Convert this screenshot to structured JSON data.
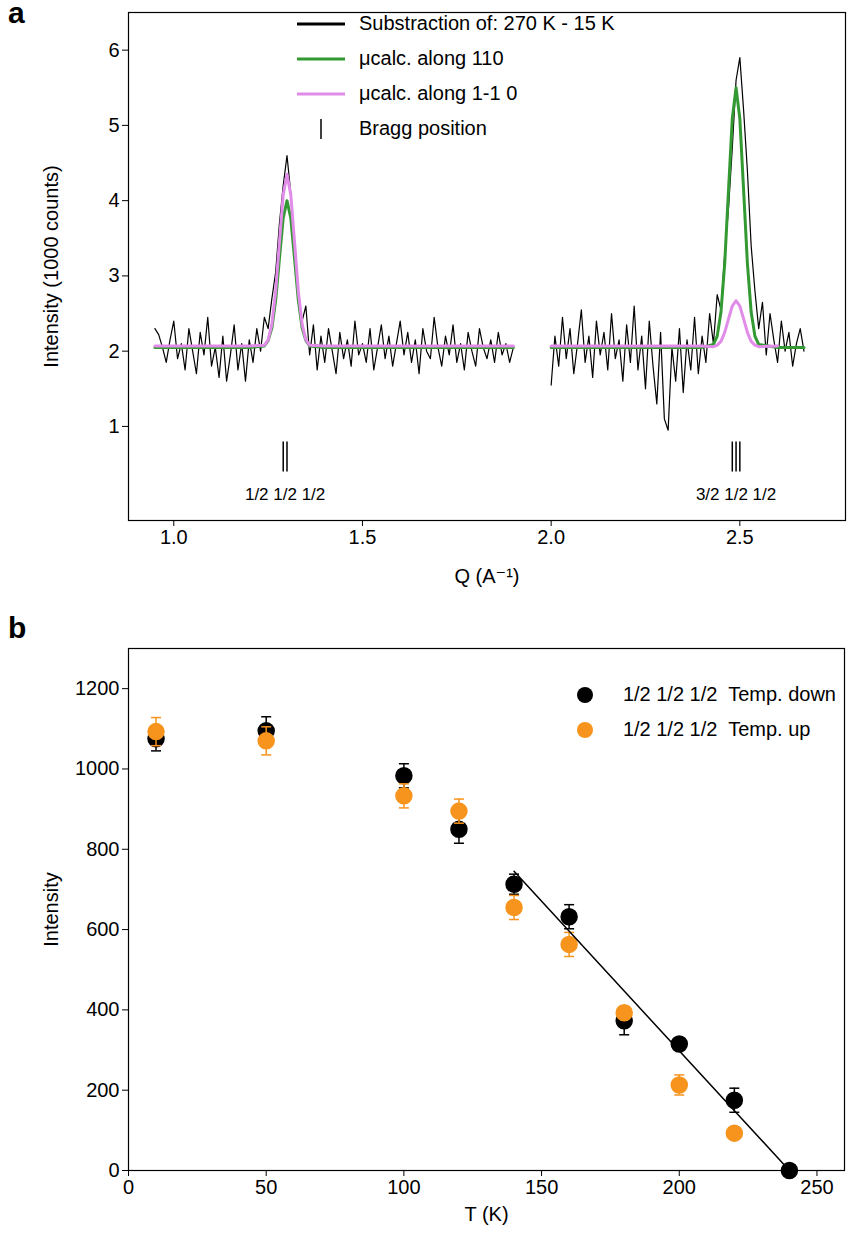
{
  "chart_data": [
    {
      "panel": "a",
      "type": "line",
      "xlabel": "Q (A⁻¹)",
      "ylabel": "Intensity (1000 counts)",
      "xlim": [
        0.88,
        2.78
      ],
      "ylim": [
        -0.25,
        6.5
      ],
      "xticks": [
        {
          "value": 1,
          "label": "1.0"
        },
        {
          "value": 1.5,
          "label": "1.5"
        },
        {
          "value": 2,
          "label": "2.0"
        },
        {
          "value": 2.5,
          "label": "2.5"
        }
      ],
      "yticks": [
        1,
        2,
        3,
        4,
        5,
        6
      ],
      "legend": "top",
      "series": [
        {
          "name": "Substraction of: 270 K - 15 K",
          "type": "line",
          "color": "#000000",
          "x": [
            0.95,
            0.96,
            0.97,
            0.98,
            0.99,
            1.0,
            1.01,
            1.02,
            1.03,
            1.04,
            1.05,
            1.06,
            1.07,
            1.08,
            1.09,
            1.1,
            1.11,
            1.12,
            1.13,
            1.14,
            1.15,
            1.16,
            1.17,
            1.18,
            1.19,
            1.2,
            1.21,
            1.22,
            1.23,
            1.24,
            1.25,
            1.26,
            1.27,
            1.28,
            1.29,
            1.3,
            1.31,
            1.32,
            1.33,
            1.34,
            1.35,
            1.36,
            1.37,
            1.38,
            1.39,
            1.4,
            1.41,
            1.42,
            1.43,
            1.44,
            1.45,
            1.46,
            1.47,
            1.48,
            1.49,
            1.5,
            1.51,
            1.52,
            1.53,
            1.54,
            1.55,
            1.56,
            1.57,
            1.58,
            1.59,
            1.6,
            1.61,
            1.62,
            1.63,
            1.64,
            1.65,
            1.66,
            1.67,
            1.68,
            1.69,
            1.7,
            1.71,
            1.72,
            1.73,
            1.74,
            1.75,
            1.76,
            1.77,
            1.78,
            1.79,
            1.8,
            1.81,
            1.82,
            1.83,
            1.84,
            1.85,
            1.86,
            1.87,
            1.88,
            1.89,
            1.9,
            1.95,
            2.0,
            2.01,
            2.02,
            2.03,
            2.04,
            2.05,
            2.06,
            2.07,
            2.08,
            2.09,
            2.1,
            2.11,
            2.12,
            2.13,
            2.14,
            2.15,
            2.16,
            2.17,
            2.18,
            2.19,
            2.2,
            2.21,
            2.22,
            2.23,
            2.24,
            2.25,
            2.26,
            2.27,
            2.28,
            2.29,
            2.3,
            2.31,
            2.32,
            2.33,
            2.34,
            2.35,
            2.36,
            2.37,
            2.38,
            2.39,
            2.4,
            2.41,
            2.42,
            2.43,
            2.44,
            2.45,
            2.46,
            2.47,
            2.48,
            2.49,
            2.5,
            2.51,
            2.52,
            2.53,
            2.54,
            2.55,
            2.56,
            2.57,
            2.58,
            2.59,
            2.6,
            2.61,
            2.62,
            2.63,
            2.64,
            2.65,
            2.66,
            2.67
          ],
          "values": [
            2.3,
            2.22,
            2.05,
            1.85,
            2.15,
            2.4,
            1.9,
            2.1,
            1.75,
            2.3,
            2.0,
            1.7,
            2.25,
            1.95,
            2.45,
            1.8,
            2.05,
            1.65,
            2.2,
            1.6,
            1.95,
            2.35,
            1.75,
            2.1,
            1.6,
            2.15,
            1.85,
            2.3,
            2.0,
            2.45,
            2.3,
            2.7,
            3.05,
            3.7,
            4.2,
            4.6,
            4.1,
            3.3,
            2.75,
            2.4,
            2.6,
            1.95,
            2.35,
            1.75,
            2.2,
            1.85,
            2.3,
            2.0,
            1.7,
            2.25,
            1.9,
            2.15,
            1.8,
            2.4,
            1.95,
            2.1,
            1.85,
            2.3,
            1.75,
            2.05,
            2.35,
            1.9,
            2.2,
            1.8,
            2.1,
            2.4,
            1.95,
            2.25,
            1.85,
            2.15,
            1.7,
            2.3,
            2.0,
            1.9,
            2.45,
            2.05,
            1.8,
            2.2,
            1.95,
            2.35,
            1.85,
            2.1,
            1.75,
            2.25,
            2.0,
            1.8,
            2.3,
            2.05,
            1.9,
            2.15,
            1.85,
            2.25,
            1.95,
            2.1,
            1.85,
            2.05,
            null,
            1.55,
            2.2,
            1.8,
            2.45,
            1.9,
            2.3,
            1.7,
            2.1,
            2.55,
            1.85,
            2.2,
            1.65,
            2.4,
            1.95,
            2.25,
            1.75,
            2.5,
            1.9,
            2.15,
            1.6,
            2.35,
            1.85,
            2.6,
            1.75,
            2.2,
            1.5,
            2.4,
            1.8,
            1.3,
            2.25,
            1.1,
            0.95,
            2.05,
            1.6,
            2.3,
            1.45,
            2.15,
            1.75,
            2.45,
            1.7,
            2.2,
            1.85,
            2.5,
            2.1,
            2.75,
            2.55,
            3.3,
            3.9,
            4.7,
            5.6,
            5.9,
            5.2,
            4.4,
            3.4,
            2.8,
            2.3,
            2.65,
            1.95,
            2.5,
            2.15,
            1.85,
            2.4,
            2.0,
            2.25,
            1.8,
            2.1,
            2.3,
            2.0
          ]
        },
        {
          "name": "μcalc. along 110",
          "type": "line",
          "color": "#339933",
          "x": [
            0.95,
            1.2,
            1.24,
            1.25,
            1.26,
            1.27,
            1.28,
            1.29,
            1.3,
            1.31,
            1.32,
            1.33,
            1.34,
            1.35,
            1.36,
            1.4,
            1.9,
            1.95,
            2.0,
            2.4,
            2.43,
            2.44,
            2.45,
            2.46,
            2.47,
            2.48,
            2.49,
            2.5,
            2.51,
            2.52,
            2.53,
            2.54,
            2.55,
            2.6,
            2.67
          ],
          "values": [
            2.05,
            2.05,
            2.07,
            2.14,
            2.31,
            2.68,
            3.23,
            3.77,
            4.0,
            3.77,
            3.23,
            2.68,
            2.31,
            2.14,
            2.07,
            2.05,
            2.05,
            null,
            2.05,
            2.05,
            2.09,
            2.2,
            2.52,
            3.17,
            4.14,
            5.09,
            5.5,
            5.09,
            4.14,
            3.17,
            2.52,
            2.2,
            2.09,
            2.05,
            2.05
          ]
        },
        {
          "name": "μcalc. along 1-1 0",
          "type": "line",
          "color": "#e08ce8",
          "x": [
            0.95,
            1.2,
            1.24,
            1.25,
            1.26,
            1.27,
            1.28,
            1.29,
            1.3,
            1.31,
            1.32,
            1.33,
            1.34,
            1.35,
            1.36,
            1.4,
            1.9,
            1.95,
            2.0,
            2.4,
            2.43,
            2.44,
            2.45,
            2.46,
            2.47,
            2.48,
            2.49,
            2.5,
            2.51,
            2.52,
            2.53,
            2.54,
            2.55,
            2.6
          ],
          "values": [
            2.07,
            2.07,
            2.08,
            2.15,
            2.36,
            2.8,
            3.45,
            4.08,
            4.35,
            4.08,
            3.45,
            2.8,
            2.36,
            2.15,
            2.08,
            2.07,
            2.07,
            null,
            2.07,
            2.07,
            2.06,
            2.08,
            2.13,
            2.25,
            2.43,
            2.6,
            2.67,
            2.6,
            2.43,
            2.25,
            2.13,
            2.08,
            2.06,
            2.07
          ]
        },
        {
          "name": "Bragg position",
          "type": "scatter",
          "marker": "tick",
          "color": "#000000",
          "x": [
            1.29,
            1.3,
            2.48,
            2.49,
            2.5
          ],
          "values": [
            0.6,
            0.6,
            0.6,
            0.6,
            0.6
          ]
        }
      ],
      "annotations": [
        {
          "text": "1/2 1/2 1/2",
          "x": 1.295,
          "y": 0.1
        },
        {
          "text": "3/2 1/2 1/2",
          "x": 2.49,
          "y": 0.1
        }
      ]
    },
    {
      "panel": "b",
      "type": "scatter",
      "xlabel": "T (K)",
      "ylabel": "Intensity",
      "xlim": [
        0,
        260
      ],
      "ylim": [
        0,
        1300
      ],
      "xticks": [
        0,
        50,
        100,
        150,
        200,
        250
      ],
      "yticks": [
        0,
        200,
        400,
        600,
        800,
        1000,
        1200
      ],
      "legend": "top-right",
      "series": [
        {
          "name": "1/2 1/2 1/2  Temp. down",
          "type": "scatter",
          "marker": "circle",
          "color": "#000000",
          "x": [
            10,
            50,
            100,
            120,
            140,
            160,
            180,
            200,
            220,
            240
          ],
          "values": [
            1075,
            1095,
            983,
            850,
            713,
            632,
            373,
            315,
            175,
            0
          ],
          "errors": [
            30,
            35,
            30,
            35,
            25,
            30,
            35,
            15,
            30,
            0
          ]
        },
        {
          "name": "1/2 1/2 1/2  Temp. up",
          "type": "scatter",
          "marker": "circle",
          "color": "#f7941d",
          "x": [
            10,
            50,
            100,
            120,
            140,
            160,
            180,
            200,
            220
          ],
          "values": [
            1093,
            1070,
            933,
            895,
            655,
            563,
            393,
            213,
            93
          ],
          "errors": [
            35,
            35,
            30,
            30,
            30,
            30,
            15,
            25,
            10
          ]
        }
      ],
      "fit": {
        "type": "line",
        "color": "#000000",
        "x": [
          140,
          240
        ],
        "values": [
          745,
          0
        ]
      }
    }
  ]
}
